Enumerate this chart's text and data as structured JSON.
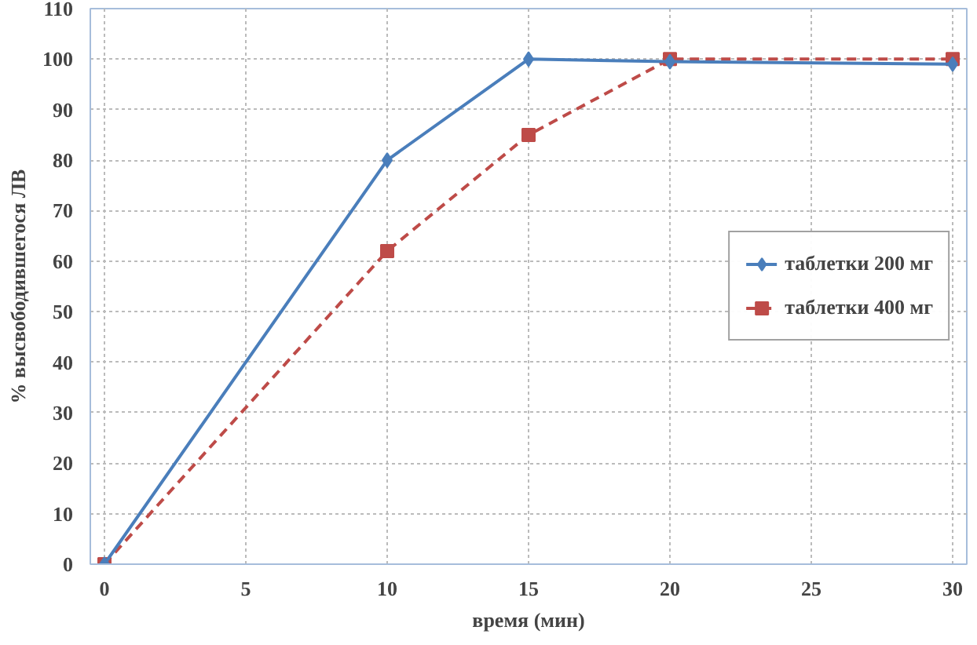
{
  "chart_data": {
    "type": "line",
    "xlabel": "время (мин)",
    "ylabel": "% высвободившегося ЛВ",
    "x": [
      0,
      10,
      15,
      20,
      30
    ],
    "xlim": [
      -0.5,
      30.5
    ],
    "xticks": [
      0,
      5,
      10,
      15,
      20,
      25,
      30
    ],
    "ylim": [
      0,
      110
    ],
    "yticks": [
      0,
      10,
      20,
      30,
      40,
      50,
      60,
      70,
      80,
      90,
      100,
      110
    ],
    "grid": true,
    "legend": "right",
    "series": [
      {
        "name": "таблетки 200 мг",
        "color": "#4a7ebb",
        "values": [
          0,
          80,
          100,
          99.5,
          99
        ],
        "marker": "diamond",
        "line_style": "solid"
      },
      {
        "name": "таблетки 400 мг",
        "color": "#be4b48",
        "values": [
          0,
          62,
          85,
          100,
          100
        ],
        "marker": "square",
        "line_style": "dashed"
      }
    ]
  }
}
